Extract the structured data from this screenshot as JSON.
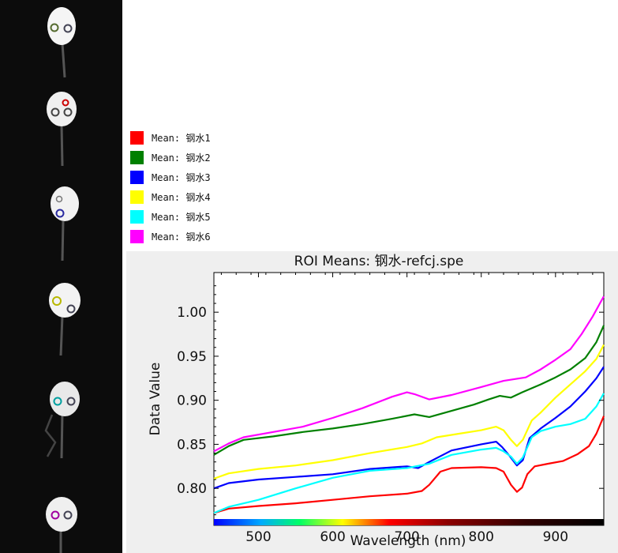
{
  "chart_data": {
    "type": "line",
    "title": "ROI Means: 钢水-refcj.spe",
    "xlabel": "Wavelength (nm)",
    "ylabel": "Data Value",
    "xlim": [
      440,
      965
    ],
    "ylim": [
      0.758,
      1.045
    ],
    "xticks": [
      500,
      600,
      700,
      800,
      900
    ],
    "yticks": [
      0.8,
      0.85,
      0.9,
      0.95,
      1.0
    ],
    "ytick_labels": [
      "0.80",
      "0.85",
      "0.90",
      "0.95",
      "1.00"
    ],
    "grid": false,
    "legend_position": "top-left, above plot",
    "series": [
      {
        "name": "Mean: 钢水1",
        "color": "#ff0000",
        "points": [
          [
            440,
            0.772
          ],
          [
            460,
            0.777
          ],
          [
            500,
            0.78
          ],
          [
            550,
            0.783
          ],
          [
            600,
            0.787
          ],
          [
            650,
            0.791
          ],
          [
            700,
            0.794
          ],
          [
            720,
            0.797
          ],
          [
            730,
            0.804
          ],
          [
            745,
            0.819
          ],
          [
            760,
            0.823
          ],
          [
            800,
            0.824
          ],
          [
            820,
            0.823
          ],
          [
            830,
            0.819
          ],
          [
            840,
            0.804
          ],
          [
            848,
            0.796
          ],
          [
            855,
            0.801
          ],
          [
            862,
            0.816
          ],
          [
            872,
            0.825
          ],
          [
            890,
            0.828
          ],
          [
            910,
            0.831
          ],
          [
            930,
            0.839
          ],
          [
            945,
            0.848
          ],
          [
            955,
            0.862
          ],
          [
            965,
            0.882
          ]
        ]
      },
      {
        "name": "Mean: 钢水2",
        "color": "#008000",
        "points": [
          [
            440,
            0.838
          ],
          [
            460,
            0.848
          ],
          [
            480,
            0.855
          ],
          [
            520,
            0.859
          ],
          [
            560,
            0.864
          ],
          [
            600,
            0.868
          ],
          [
            640,
            0.873
          ],
          [
            680,
            0.879
          ],
          [
            710,
            0.884
          ],
          [
            730,
            0.881
          ],
          [
            760,
            0.888
          ],
          [
            790,
            0.895
          ],
          [
            810,
            0.901
          ],
          [
            825,
            0.905
          ],
          [
            840,
            0.903
          ],
          [
            855,
            0.909
          ],
          [
            880,
            0.918
          ],
          [
            900,
            0.926
          ],
          [
            920,
            0.935
          ],
          [
            940,
            0.948
          ],
          [
            955,
            0.966
          ],
          [
            965,
            0.985
          ]
        ]
      },
      {
        "name": "Mean: 钢水3",
        "color": "#0000ff",
        "points": [
          [
            440,
            0.8
          ],
          [
            460,
            0.806
          ],
          [
            500,
            0.81
          ],
          [
            550,
            0.813
          ],
          [
            600,
            0.816
          ],
          [
            650,
            0.822
          ],
          [
            700,
            0.825
          ],
          [
            715,
            0.823
          ],
          [
            730,
            0.83
          ],
          [
            760,
            0.843
          ],
          [
            800,
            0.85
          ],
          [
            820,
            0.853
          ],
          [
            828,
            0.847
          ],
          [
            838,
            0.837
          ],
          [
            848,
            0.826
          ],
          [
            856,
            0.832
          ],
          [
            865,
            0.857
          ],
          [
            880,
            0.868
          ],
          [
            900,
            0.88
          ],
          [
            920,
            0.893
          ],
          [
            940,
            0.91
          ],
          [
            955,
            0.925
          ],
          [
            965,
            0.938
          ]
        ]
      },
      {
        "name": "Mean: 钢水4",
        "color": "#ffff00",
        "points": [
          [
            440,
            0.811
          ],
          [
            460,
            0.817
          ],
          [
            500,
            0.822
          ],
          [
            550,
            0.826
          ],
          [
            600,
            0.832
          ],
          [
            650,
            0.84
          ],
          [
            700,
            0.847
          ],
          [
            720,
            0.851
          ],
          [
            740,
            0.858
          ],
          [
            770,
            0.862
          ],
          [
            800,
            0.866
          ],
          [
            820,
            0.87
          ],
          [
            830,
            0.866
          ],
          [
            840,
            0.855
          ],
          [
            848,
            0.848
          ],
          [
            856,
            0.855
          ],
          [
            868,
            0.877
          ],
          [
            880,
            0.886
          ],
          [
            900,
            0.903
          ],
          [
            920,
            0.918
          ],
          [
            940,
            0.933
          ],
          [
            955,
            0.947
          ],
          [
            965,
            0.963
          ]
        ]
      },
      {
        "name": "Mean: 钢水5",
        "color": "#00ffff",
        "points": [
          [
            440,
            0.772
          ],
          [
            460,
            0.779
          ],
          [
            500,
            0.787
          ],
          [
            550,
            0.8
          ],
          [
            600,
            0.812
          ],
          [
            650,
            0.82
          ],
          [
            700,
            0.823
          ],
          [
            730,
            0.828
          ],
          [
            760,
            0.838
          ],
          [
            800,
            0.844
          ],
          [
            820,
            0.846
          ],
          [
            830,
            0.842
          ],
          [
            840,
            0.836
          ],
          [
            848,
            0.828
          ],
          [
            856,
            0.835
          ],
          [
            868,
            0.858
          ],
          [
            880,
            0.865
          ],
          [
            900,
            0.87
          ],
          [
            920,
            0.873
          ],
          [
            940,
            0.879
          ],
          [
            955,
            0.893
          ],
          [
            965,
            0.908
          ]
        ]
      },
      {
        "name": "Mean: 钢水6",
        "color": "#ff00ff",
        "points": [
          [
            440,
            0.842
          ],
          [
            460,
            0.851
          ],
          [
            480,
            0.858
          ],
          [
            520,
            0.864
          ],
          [
            560,
            0.87
          ],
          [
            600,
            0.88
          ],
          [
            640,
            0.891
          ],
          [
            680,
            0.904
          ],
          [
            700,
            0.909
          ],
          [
            710,
            0.907
          ],
          [
            730,
            0.901
          ],
          [
            760,
            0.906
          ],
          [
            800,
            0.915
          ],
          [
            830,
            0.922
          ],
          [
            860,
            0.926
          ],
          [
            880,
            0.935
          ],
          [
            900,
            0.946
          ],
          [
            920,
            0.958
          ],
          [
            935,
            0.975
          ],
          [
            950,
            0.995
          ],
          [
            965,
            1.018
          ]
        ]
      }
    ]
  }
}
